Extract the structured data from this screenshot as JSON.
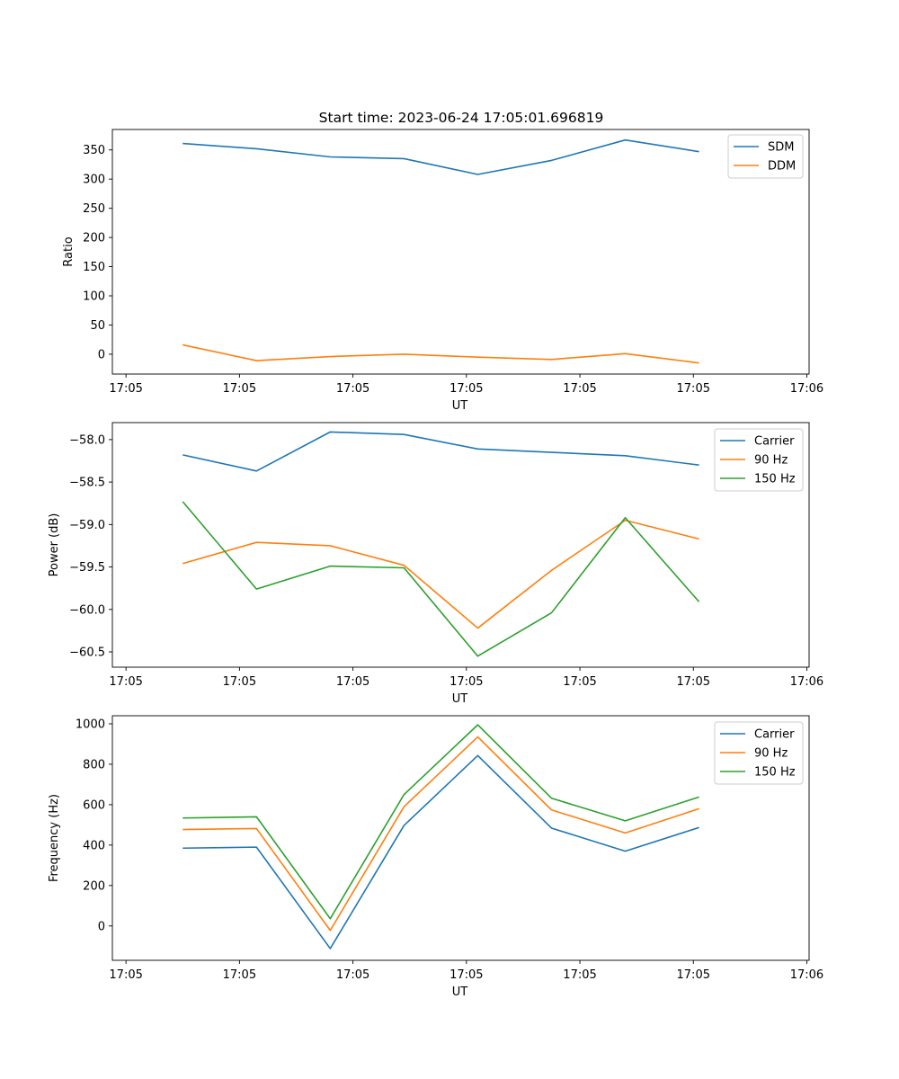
{
  "figure": {
    "title": "Start time: 2023-06-24 17:05:01.696819"
  },
  "chart_data": [
    {
      "type": "line",
      "title": "Start time: 2023-06-24 17:05:01.696819",
      "xlabel": "UT",
      "ylabel": "Ratio",
      "x_tick_labels": [
        "17:05",
        "17:05",
        "17:05",
        "17:05",
        "17:05",
        "17:05",
        "17:06"
      ],
      "x_ticks": [
        0,
        10,
        20,
        30,
        40,
        50,
        60
      ],
      "xlim": [
        -1.2,
        60.2
      ],
      "y_ticks": [
        0,
        50,
        100,
        150,
        200,
        250,
        300,
        350
      ],
      "ylim": [
        -34,
        385
      ],
      "x": [
        5,
        11.5,
        18,
        24.5,
        31,
        37.5,
        44,
        50.5
      ],
      "series": [
        {
          "name": "SDM",
          "color": "#1f77b4",
          "values": [
            361,
            352,
            338,
            335,
            308,
            332,
            367,
            347
          ]
        },
        {
          "name": "DDM",
          "color": "#ff7f0e",
          "values": [
            16,
            -11,
            -4,
            0,
            -5,
            -9,
            1,
            -15
          ]
        }
      ],
      "legend": "top-right",
      "grid": false
    },
    {
      "type": "line",
      "title": "",
      "xlabel": "UT",
      "ylabel": "Power (dB)",
      "x_tick_labels": [
        "17:05",
        "17:05",
        "17:05",
        "17:05",
        "17:05",
        "17:05",
        "17:06"
      ],
      "x_ticks": [
        0,
        10,
        20,
        30,
        40,
        50,
        60
      ],
      "xlim": [
        -1.2,
        60.2
      ],
      "y_ticks": [
        -60.5,
        -60.0,
        -59.5,
        -59.0,
        -58.5,
        -58.0
      ],
      "y_tick_labels": [
        "−60.5",
        "−60.0",
        "−59.5",
        "−59.0",
        "−58.5",
        "−58.0"
      ],
      "ylim": [
        -60.68,
        -57.8
      ],
      "x": [
        5,
        11.5,
        18,
        24.5,
        31,
        37.5,
        44,
        50.5
      ],
      "series": [
        {
          "name": "Carrier",
          "color": "#1f77b4",
          "values": [
            -58.18,
            -58.37,
            -57.91,
            -57.94,
            -58.11,
            -58.15,
            -58.19,
            -58.3
          ]
        },
        {
          "name": "90 Hz",
          "color": "#ff7f0e",
          "values": [
            -59.46,
            -59.21,
            -59.25,
            -59.48,
            -60.22,
            -59.54,
            -58.95,
            -59.17
          ]
        },
        {
          "name": "150 Hz",
          "color": "#2ca02c",
          "values": [
            -58.73,
            -59.76,
            -59.49,
            -59.51,
            -60.55,
            -60.04,
            -58.92,
            -59.91
          ]
        }
      ],
      "legend": "top-right",
      "grid": false
    },
    {
      "type": "line",
      "title": "",
      "xlabel": "UT",
      "ylabel": "Frequency (Hz)",
      "x_tick_labels": [
        "17:05",
        "17:05",
        "17:05",
        "17:05",
        "17:05",
        "17:05",
        "17:06"
      ],
      "x_ticks": [
        0,
        10,
        20,
        30,
        40,
        50,
        60
      ],
      "xlim": [
        -1.2,
        60.2
      ],
      "y_ticks": [
        0,
        200,
        400,
        600,
        800,
        1000
      ],
      "ylim": [
        -170,
        1040
      ],
      "x": [
        5,
        11.5,
        18,
        24.5,
        31,
        37.5,
        44,
        50.5
      ],
      "series": [
        {
          "name": "Carrier",
          "color": "#1f77b4",
          "values": [
            385,
            390,
            -112,
            497,
            843,
            484,
            370,
            487
          ]
        },
        {
          "name": "90 Hz",
          "color": "#ff7f0e",
          "values": [
            477,
            482,
            -22,
            590,
            935,
            574,
            460,
            580
          ]
        },
        {
          "name": "150 Hz",
          "color": "#2ca02c",
          "values": [
            534,
            540,
            36,
            650,
            995,
            632,
            520,
            638
          ]
        }
      ],
      "legend": "top-right",
      "grid": false
    }
  ]
}
